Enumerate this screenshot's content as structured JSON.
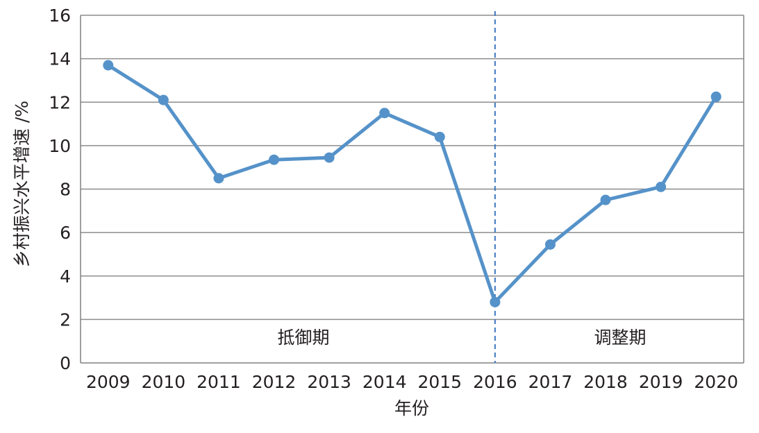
{
  "chart_data": {
    "type": "line",
    "title": "",
    "xlabel": "年份",
    "ylabel": "乡村振兴水平增速 /%",
    "x": [
      "2009",
      "2010",
      "2011",
      "2012",
      "2013",
      "2014",
      "2015",
      "2016",
      "2017",
      "2018",
      "2019",
      "2020"
    ],
    "series": [
      {
        "values": [
          13.7,
          12.1,
          8.5,
          9.35,
          9.45,
          11.5,
          10.4,
          2.8,
          5.45,
          7.5,
          8.1,
          12.25
        ]
      }
    ],
    "ylim": [
      0,
      16
    ],
    "yticks": [
      "0",
      "2",
      "4",
      "6",
      "8",
      "10",
      "12",
      "14",
      "16"
    ],
    "grid": "horizontal",
    "divider": {
      "at": "2016",
      "style": "dashed"
    },
    "phases": [
      {
        "label": "抵御期"
      },
      {
        "label": "调整期"
      }
    ],
    "colors": {
      "line": "#5592c9",
      "divider": "#3f78c2",
      "grid": "#8c8c8c",
      "axis": "#808080"
    }
  }
}
